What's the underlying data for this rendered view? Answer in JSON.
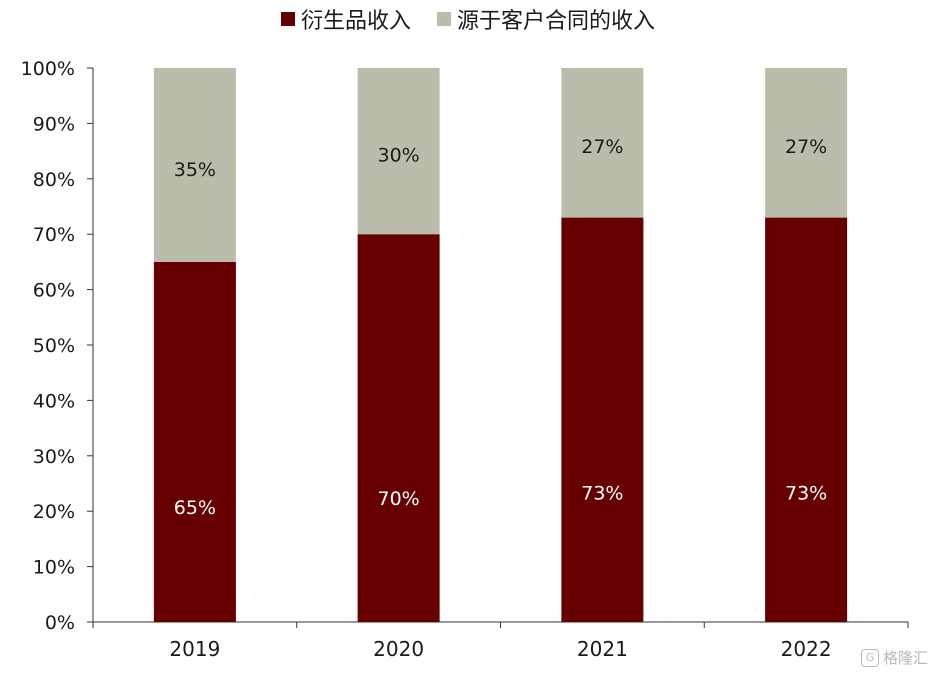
{
  "chart_data": {
    "type": "bar",
    "stacked": true,
    "categories": [
      "2019",
      "2020",
      "2021",
      "2022"
    ],
    "series": [
      {
        "name": "衍生品收入",
        "values": [
          65,
          70,
          73,
          73
        ],
        "labels": [
          "65%",
          "70%",
          "73%",
          "73%"
        ],
        "color": "#660000"
      },
      {
        "name": "源于客户合同的收入",
        "values": [
          35,
          30,
          27,
          27
        ],
        "labels": [
          "35%",
          "30%",
          "27%",
          "27%"
        ],
        "color": "#bcbcac"
      }
    ],
    "ylim": [
      0,
      100
    ],
    "yticks": [
      "0%",
      "10%",
      "20%",
      "30%",
      "40%",
      "50%",
      "60%",
      "70%",
      "80%",
      "90%",
      "100%"
    ],
    "grid": false,
    "legend": "top-center"
  },
  "watermark": {
    "text": "格隆汇",
    "icon": "G"
  }
}
